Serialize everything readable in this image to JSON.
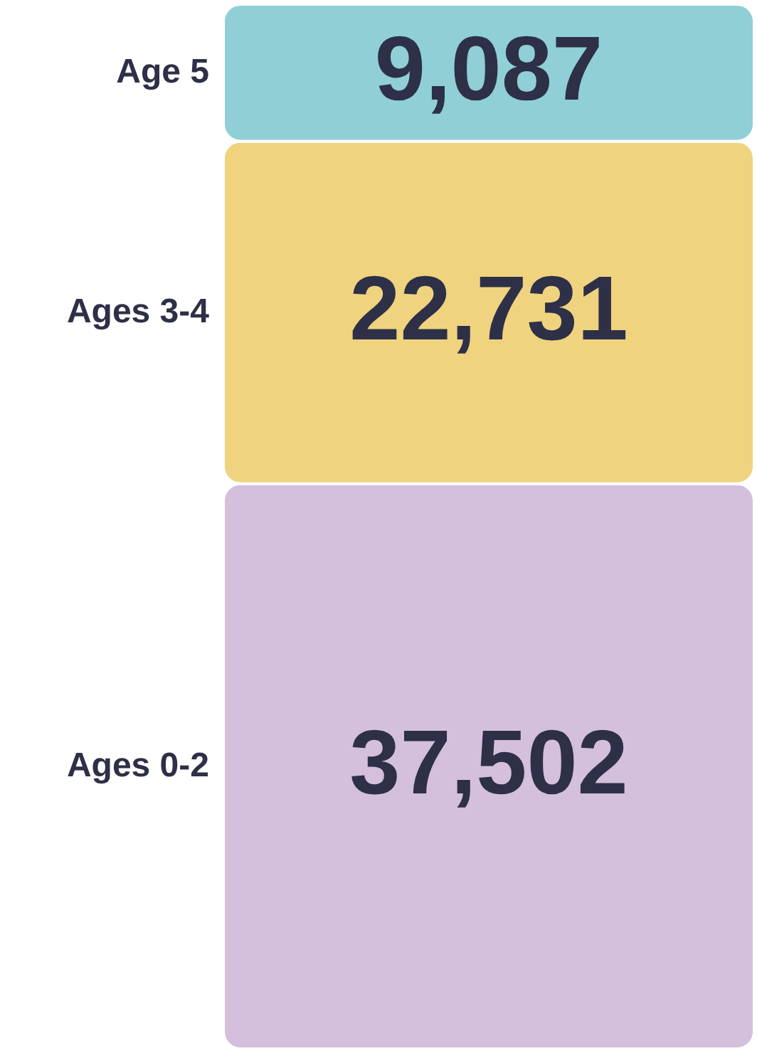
{
  "chart_data": {
    "type": "bar",
    "stacked": true,
    "categories": [
      null
    ],
    "series": [
      {
        "name": "Ages 0-2",
        "color": "#d4bfdd",
        "values": [
          37502
        ],
        "value_labels": [
          "37,502"
        ]
      },
      {
        "name": "Ages 3-4",
        "color": "#f0d37e",
        "values": [
          22731
        ],
        "value_labels": [
          "22,731"
        ]
      },
      {
        "name": "Age 5",
        "color": "#90cfd6",
        "values": [
          9087
        ],
        "value_labels": [
          "9,087"
        ]
      }
    ]
  }
}
